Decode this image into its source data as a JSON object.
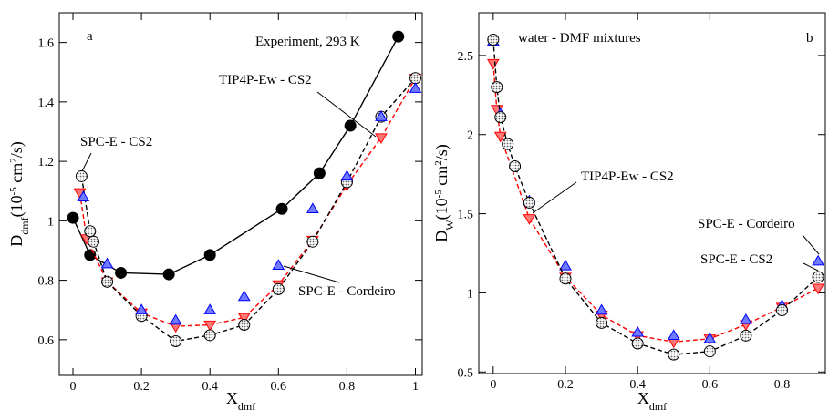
{
  "chart_data": [
    {
      "type": "line",
      "panel_label": "a",
      "xlabel": [
        {
          "text": "X"
        },
        {
          "text": "dmf",
          "shift": "sub"
        }
      ],
      "ylabel": [
        {
          "text": "D"
        },
        {
          "text": "dmf",
          "shift": "sub"
        },
        {
          "text": "(10"
        },
        {
          "text": "-5",
          "shift": "super"
        },
        {
          "text": " cm"
        },
        {
          "text": "2",
          "shift": "super"
        },
        {
          "text": "/s)"
        }
      ],
      "xlim": [
        -0.04,
        1.02
      ],
      "ylim": [
        0.48,
        1.7
      ],
      "xticks": [
        0,
        0.2,
        0.4,
        0.6,
        0.8,
        1
      ],
      "yticks": [
        0.6,
        0.8,
        1,
        1.2,
        1.4,
        1.6
      ],
      "series": [
        {
          "name": "Experiment, 293 K",
          "color": "#000000",
          "marker": "circle",
          "line": "solid",
          "x": [
            0,
            0.05,
            0.14,
            0.28,
            0.4,
            0.61,
            0.72,
            0.81,
            0.95
          ],
          "values": [
            1.01,
            0.885,
            0.825,
            0.82,
            0.885,
            1.04,
            1.16,
            1.32,
            1.62
          ]
        },
        {
          "name": "TIP4P-Ew - CS2",
          "color": "#ff0000",
          "marker": "triangle-down",
          "line": "dashed",
          "x": [
            0.02,
            0.04,
            0.1,
            0.2,
            0.3,
            0.4,
            0.5,
            0.6,
            0.7,
            0.8,
            0.9,
            1.0
          ],
          "values": [
            1.095,
            0.94,
            0.795,
            0.69,
            0.645,
            0.65,
            0.675,
            0.785,
            0.935,
            1.12,
            1.28,
            1.48
          ]
        },
        {
          "name": "SPC-E - CS2",
          "color": "#000000",
          "marker": "hatched-circle",
          "line": "dashed",
          "x": [
            0.025,
            0.05,
            0.06,
            0.1,
            0.2,
            0.3,
            0.4,
            0.5,
            0.6,
            0.7,
            0.8,
            0.9,
            1.0
          ],
          "values": [
            1.15,
            0.965,
            0.93,
            0.795,
            0.68,
            0.595,
            0.615,
            0.65,
            0.77,
            0.93,
            1.13,
            1.35,
            1.48
          ]
        },
        {
          "name": "SPC-E - Cordeiro",
          "color": "#0000ff",
          "marker": "triangle-up",
          "line": "none",
          "x": [
            0.03,
            0.1,
            0.2,
            0.3,
            0.4,
            0.5,
            0.6,
            0.7,
            0.8,
            0.9,
            1.0
          ],
          "values": [
            1.08,
            0.855,
            0.7,
            0.665,
            0.7,
            0.745,
            0.85,
            1.04,
            1.15,
            1.35,
            1.445
          ]
        }
      ]
    },
    {
      "type": "line",
      "panel_label": "b",
      "annotation": "water - DMF mixtures",
      "xlabel": [
        {
          "text": "X"
        },
        {
          "text": "dmf",
          "shift": "sub"
        }
      ],
      "ylabel": [
        {
          "text": "D"
        },
        {
          "text": "W",
          "shift": "sub"
        },
        {
          "text": "(10"
        },
        {
          "text": "-5",
          "shift": "super"
        },
        {
          "text": " cm"
        },
        {
          "text": "2",
          "shift": "super"
        },
        {
          "text": "/s)"
        }
      ],
      "xlim": [
        -0.04,
        0.92
      ],
      "ylim": [
        0.49,
        2.77
      ],
      "xticks": [
        0,
        0.2,
        0.4,
        0.6,
        0.8
      ],
      "yticks": [
        0.5,
        1,
        1.5,
        2,
        2.5
      ],
      "series": [
        {
          "name": "TIP4P-Ew - CS2",
          "color": "#ff0000",
          "marker": "triangle-down",
          "line": "dashed",
          "x": [
            0,
            0.01,
            0.02,
            0.1,
            0.2,
            0.3,
            0.4,
            0.5,
            0.6,
            0.7,
            0.8,
            0.9
          ],
          "values": [
            2.45,
            2.16,
            1.99,
            1.47,
            1.1,
            0.86,
            0.73,
            0.69,
            0.71,
            0.8,
            0.91,
            1.03
          ]
        },
        {
          "name": "SPC-E - Cordeiro",
          "color": "#0000ff",
          "marker": "triangle-up",
          "line": "none",
          "x": [
            0,
            0.02,
            0.1,
            0.2,
            0.3,
            0.4,
            0.5,
            0.6,
            0.7,
            0.8,
            0.9
          ],
          "values": [
            2.59,
            2.13,
            1.58,
            1.17,
            0.89,
            0.75,
            0.73,
            0.71,
            0.83,
            0.92,
            1.2
          ]
        },
        {
          "name": "SPC-E - CS2",
          "color": "#000000",
          "marker": "hatched-circle",
          "line": "dashed",
          "x": [
            0,
            0.01,
            0.02,
            0.04,
            0.06,
            0.1,
            0.2,
            0.3,
            0.4,
            0.5,
            0.6,
            0.7,
            0.8,
            0.9
          ],
          "values": [
            2.6,
            2.3,
            2.11,
            1.94,
            1.8,
            1.57,
            1.09,
            0.81,
            0.68,
            0.61,
            0.63,
            0.73,
            0.89,
            1.1
          ]
        }
      ]
    }
  ]
}
